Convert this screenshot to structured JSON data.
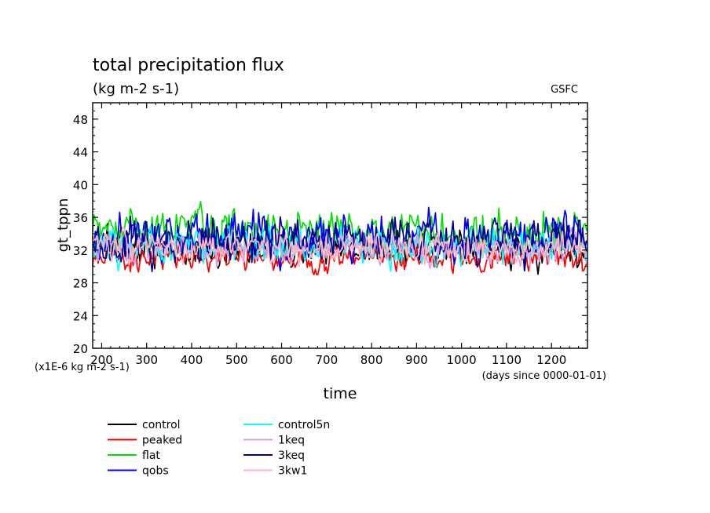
{
  "chart_data": {
    "type": "line",
    "title": "total precipitation flux",
    "subtitle": "(kg m-2 s-1)",
    "credit": "GSFC",
    "ylabel": "gt_tppn",
    "xlabel": "time",
    "x_unit_note": "(days since 0000-01-01)",
    "y_scale_note": "(x1E-6 kg m-2 s-1)",
    "xlim": [
      180,
      1280
    ],
    "ylim": [
      20,
      50
    ],
    "x_ticks": [
      200,
      300,
      400,
      500,
      600,
      700,
      800,
      900,
      1000,
      1100,
      1200
    ],
    "y_ticks": [
      20,
      24,
      28,
      32,
      36,
      40,
      44,
      48
    ],
    "legend_placement": "bottom",
    "series": [
      {
        "name": "control",
        "color": "#000000",
        "mean": 32.0,
        "amp": 1.6,
        "seed": 11
      },
      {
        "name": "peaked",
        "color": "#ff0000",
        "mean": 30.9,
        "amp": 1.1,
        "seed": 23
      },
      {
        "name": "flat",
        "color": "#00e000",
        "mean": 34.6,
        "amp": 1.8,
        "seed": 37
      },
      {
        "name": "qobs",
        "color": "#0000ff",
        "mean": 33.6,
        "amp": 1.9,
        "seed": 41
      },
      {
        "name": "control5n",
        "color": "#00ffff",
        "mean": 32.6,
        "amp": 1.6,
        "seed": 53
      },
      {
        "name": "1keq",
        "color": "#d8a0e0",
        "mean": 32.1,
        "amp": 1.5,
        "seed": 67
      },
      {
        "name": "3keq",
        "color": "#00008b",
        "mean": 33.0,
        "amp": 2.0,
        "seed": 79
      },
      {
        "name": "3kw1",
        "color": "#ffb6c1",
        "mean": 32.3,
        "amp": 1.3,
        "seed": 97
      }
    ]
  }
}
